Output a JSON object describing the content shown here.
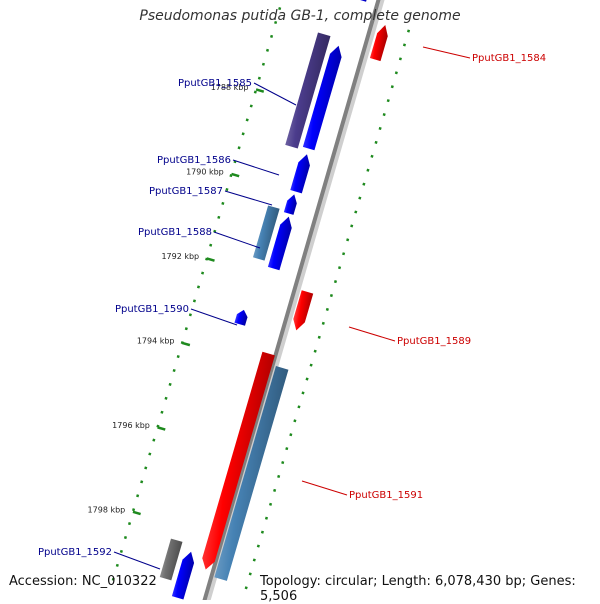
{
  "title": "Pseudomonas putida GB-1, complete genome",
  "accession": "Accession: NC_010322",
  "topology": "Topology: circular; Length: 6,078,430 bp; Genes: 5,506",
  "colors": {
    "forward_gene": "#0000ff",
    "reverse_gene": "#ff0000",
    "forward_label": "#00008b",
    "reverse_label": "#cc0000",
    "slate_blue": "#4b3c8c",
    "steel_blue": "#4682b4",
    "gray": "#707070",
    "backbone": "#808080",
    "tick_green": "#1e8a1e"
  },
  "kbp_labels": [
    "1788 kbp",
    "1790 kbp",
    "1792 kbp",
    "1794 kbp",
    "1796 kbp",
    "1798 kbp"
  ],
  "gene_labels": {
    "PputGB1_1584": "PputGB1_1584",
    "PputGB1_1585": "PputGB1_1585",
    "PputGB1_1586": "PputGB1_1586",
    "PputGB1_1587": "PputGB1_1587",
    "PputGB1_1588": "PputGB1_1588",
    "PputGB1_1589": "PputGB1_1589",
    "PputGB1_1590": "PputGB1_1590",
    "PputGB1_1591": "PputGB1_1591",
    "PputGB1_1592": "PputGB1_1592"
  }
}
